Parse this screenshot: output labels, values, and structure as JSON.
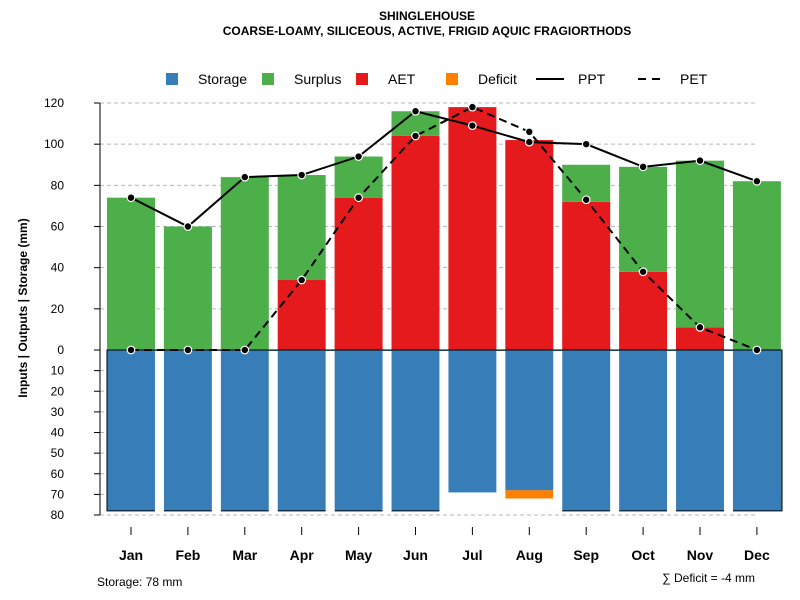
{
  "chart_data": {
    "type": "bar",
    "title": "SHINGLEHOUSE",
    "subtitle": "COARSE-LOAMY, SILICEOUS, ACTIVE, FRIGID AQUIC FRAGIORTHODS",
    "ylabel": "Inputs | Outputs | Storage    (mm)",
    "xlabel": "",
    "categories": [
      "Jan",
      "Feb",
      "Mar",
      "Apr",
      "May",
      "Jun",
      "Jul",
      "Aug",
      "Sep",
      "Oct",
      "Nov",
      "Dec"
    ],
    "upper_ylim": [
      0,
      120
    ],
    "upper_ticks": [
      0,
      20,
      40,
      60,
      80,
      100,
      120
    ],
    "lower_ylim": [
      0,
      80
    ],
    "lower_ticks": [
      10,
      20,
      30,
      40,
      50,
      60,
      70,
      80
    ],
    "series": [
      {
        "name": "AET",
        "color": "#e41a1c",
        "values": [
          0,
          0,
          0,
          34,
          74,
          104,
          118,
          102,
          72,
          38,
          11,
          0
        ]
      },
      {
        "name": "Surplus",
        "color": "#4daf4a",
        "values": [
          74,
          60,
          84,
          51,
          20,
          12,
          0,
          0,
          18,
          51,
          81,
          82
        ]
      },
      {
        "name": "Storage",
        "color": "#377eb8",
        "values": [
          78,
          78,
          78,
          78,
          78,
          78,
          69,
          68,
          78,
          78,
          78,
          78
        ]
      },
      {
        "name": "Deficit",
        "color": "#ff7f00",
        "values": [
          0,
          0,
          0,
          0,
          0,
          0,
          0,
          4,
          0,
          0,
          0,
          0
        ]
      },
      {
        "name": "PPT",
        "color": "#000000",
        "style": "solid",
        "values": [
          74,
          60,
          84,
          85,
          94,
          116,
          109,
          101,
          100,
          89,
          92,
          82
        ]
      },
      {
        "name": "PET",
        "color": "#000000",
        "style": "dashed",
        "values": [
          0,
          0,
          0,
          34,
          74,
          104,
          118,
          106,
          73,
          38,
          11,
          0
        ]
      }
    ],
    "legend": {
      "position": "top",
      "entries": [
        {
          "label": "Storage",
          "kind": "box",
          "color": "#377eb8"
        },
        {
          "label": "Surplus",
          "kind": "box",
          "color": "#4daf4a"
        },
        {
          "label": "AET",
          "kind": "box",
          "color": "#e41a1c"
        },
        {
          "label": "Deficit",
          "kind": "box",
          "color": "#ff7f00"
        },
        {
          "label": "PPT",
          "kind": "line",
          "dash": false
        },
        {
          "label": "PET",
          "kind": "line",
          "dash": true
        }
      ]
    },
    "grid": true,
    "footnote_left": "Storage: 78 mm",
    "footnote_right": "∑ Deficit = -4 mm"
  }
}
